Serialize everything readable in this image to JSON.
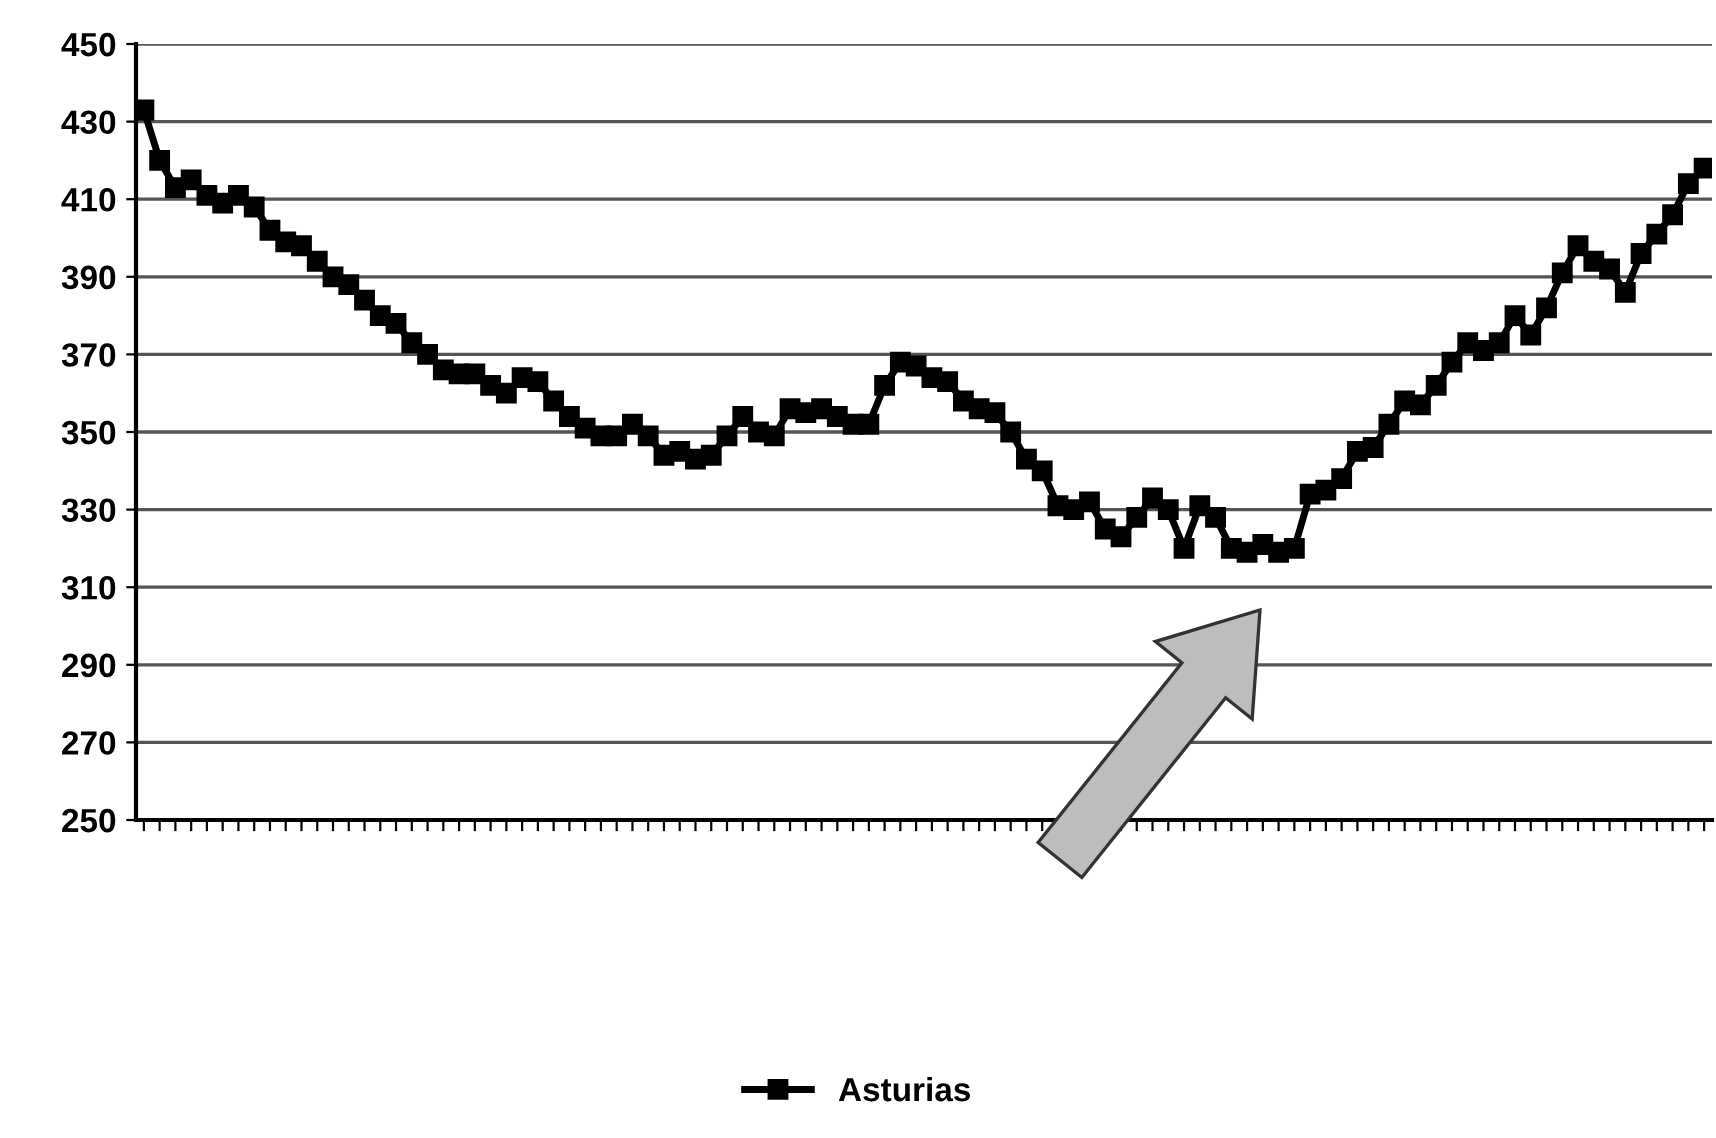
{
  "chart_data": {
    "type": "line",
    "categories": [
      null,
      null,
      null,
      null,
      null,
      null,
      null,
      null,
      null,
      null,
      null,
      null,
      null,
      null,
      null,
      null,
      null,
      null,
      null,
      null,
      null,
      null,
      null,
      null,
      null,
      null,
      null,
      null,
      null,
      null,
      null,
      null,
      null,
      null,
      null,
      null,
      null,
      null,
      null,
      null,
      null,
      null,
      null,
      null,
      null,
      null,
      null,
      null,
      null,
      null,
      null,
      null,
      null,
      null,
      null,
      null,
      null,
      null,
      null,
      null,
      null,
      null,
      null,
      null,
      null,
      null,
      null,
      null,
      null,
      null,
      null,
      null,
      null,
      null,
      null,
      null,
      null,
      null,
      null,
      null,
      null,
      null,
      null,
      null,
      null,
      null,
      null,
      null,
      null,
      null,
      null,
      null,
      null,
      null,
      null,
      null,
      null,
      null,
      null,
      null
    ],
    "series": [
      {
        "name": "Asturias",
        "color": "#000000",
        "values": [
          433,
          420,
          413,
          415,
          411,
          409,
          411,
          408,
          402,
          399,
          398,
          394,
          390,
          388,
          384,
          380,
          378,
          373,
          370,
          366,
          365,
          365,
          362,
          360,
          364,
          363,
          358,
          354,
          351,
          349,
          349,
          352,
          349,
          344,
          345,
          343,
          344,
          349,
          354,
          350,
          349,
          356,
          355,
          356,
          354,
          352,
          352,
          362,
          368,
          367,
          364,
          363,
          358,
          356,
          355,
          350,
          343,
          340,
          331,
          330,
          332,
          325,
          323,
          328,
          333,
          330,
          320,
          331,
          328,
          320,
          319,
          321,
          319,
          320,
          334,
          335,
          338,
          345,
          346,
          352,
          358,
          357,
          362,
          368,
          373,
          371,
          373,
          380,
          375,
          382,
          391,
          398,
          394,
          392,
          386,
          396,
          401,
          406,
          414,
          418
        ]
      }
    ],
    "ylim": [
      250,
      450
    ],
    "yticks": [
      250,
      270,
      290,
      310,
      330,
      350,
      370,
      390,
      410,
      430,
      450
    ],
    "grid": "y",
    "legend": "bottom",
    "marker": "square",
    "line_style": "solid"
  }
}
